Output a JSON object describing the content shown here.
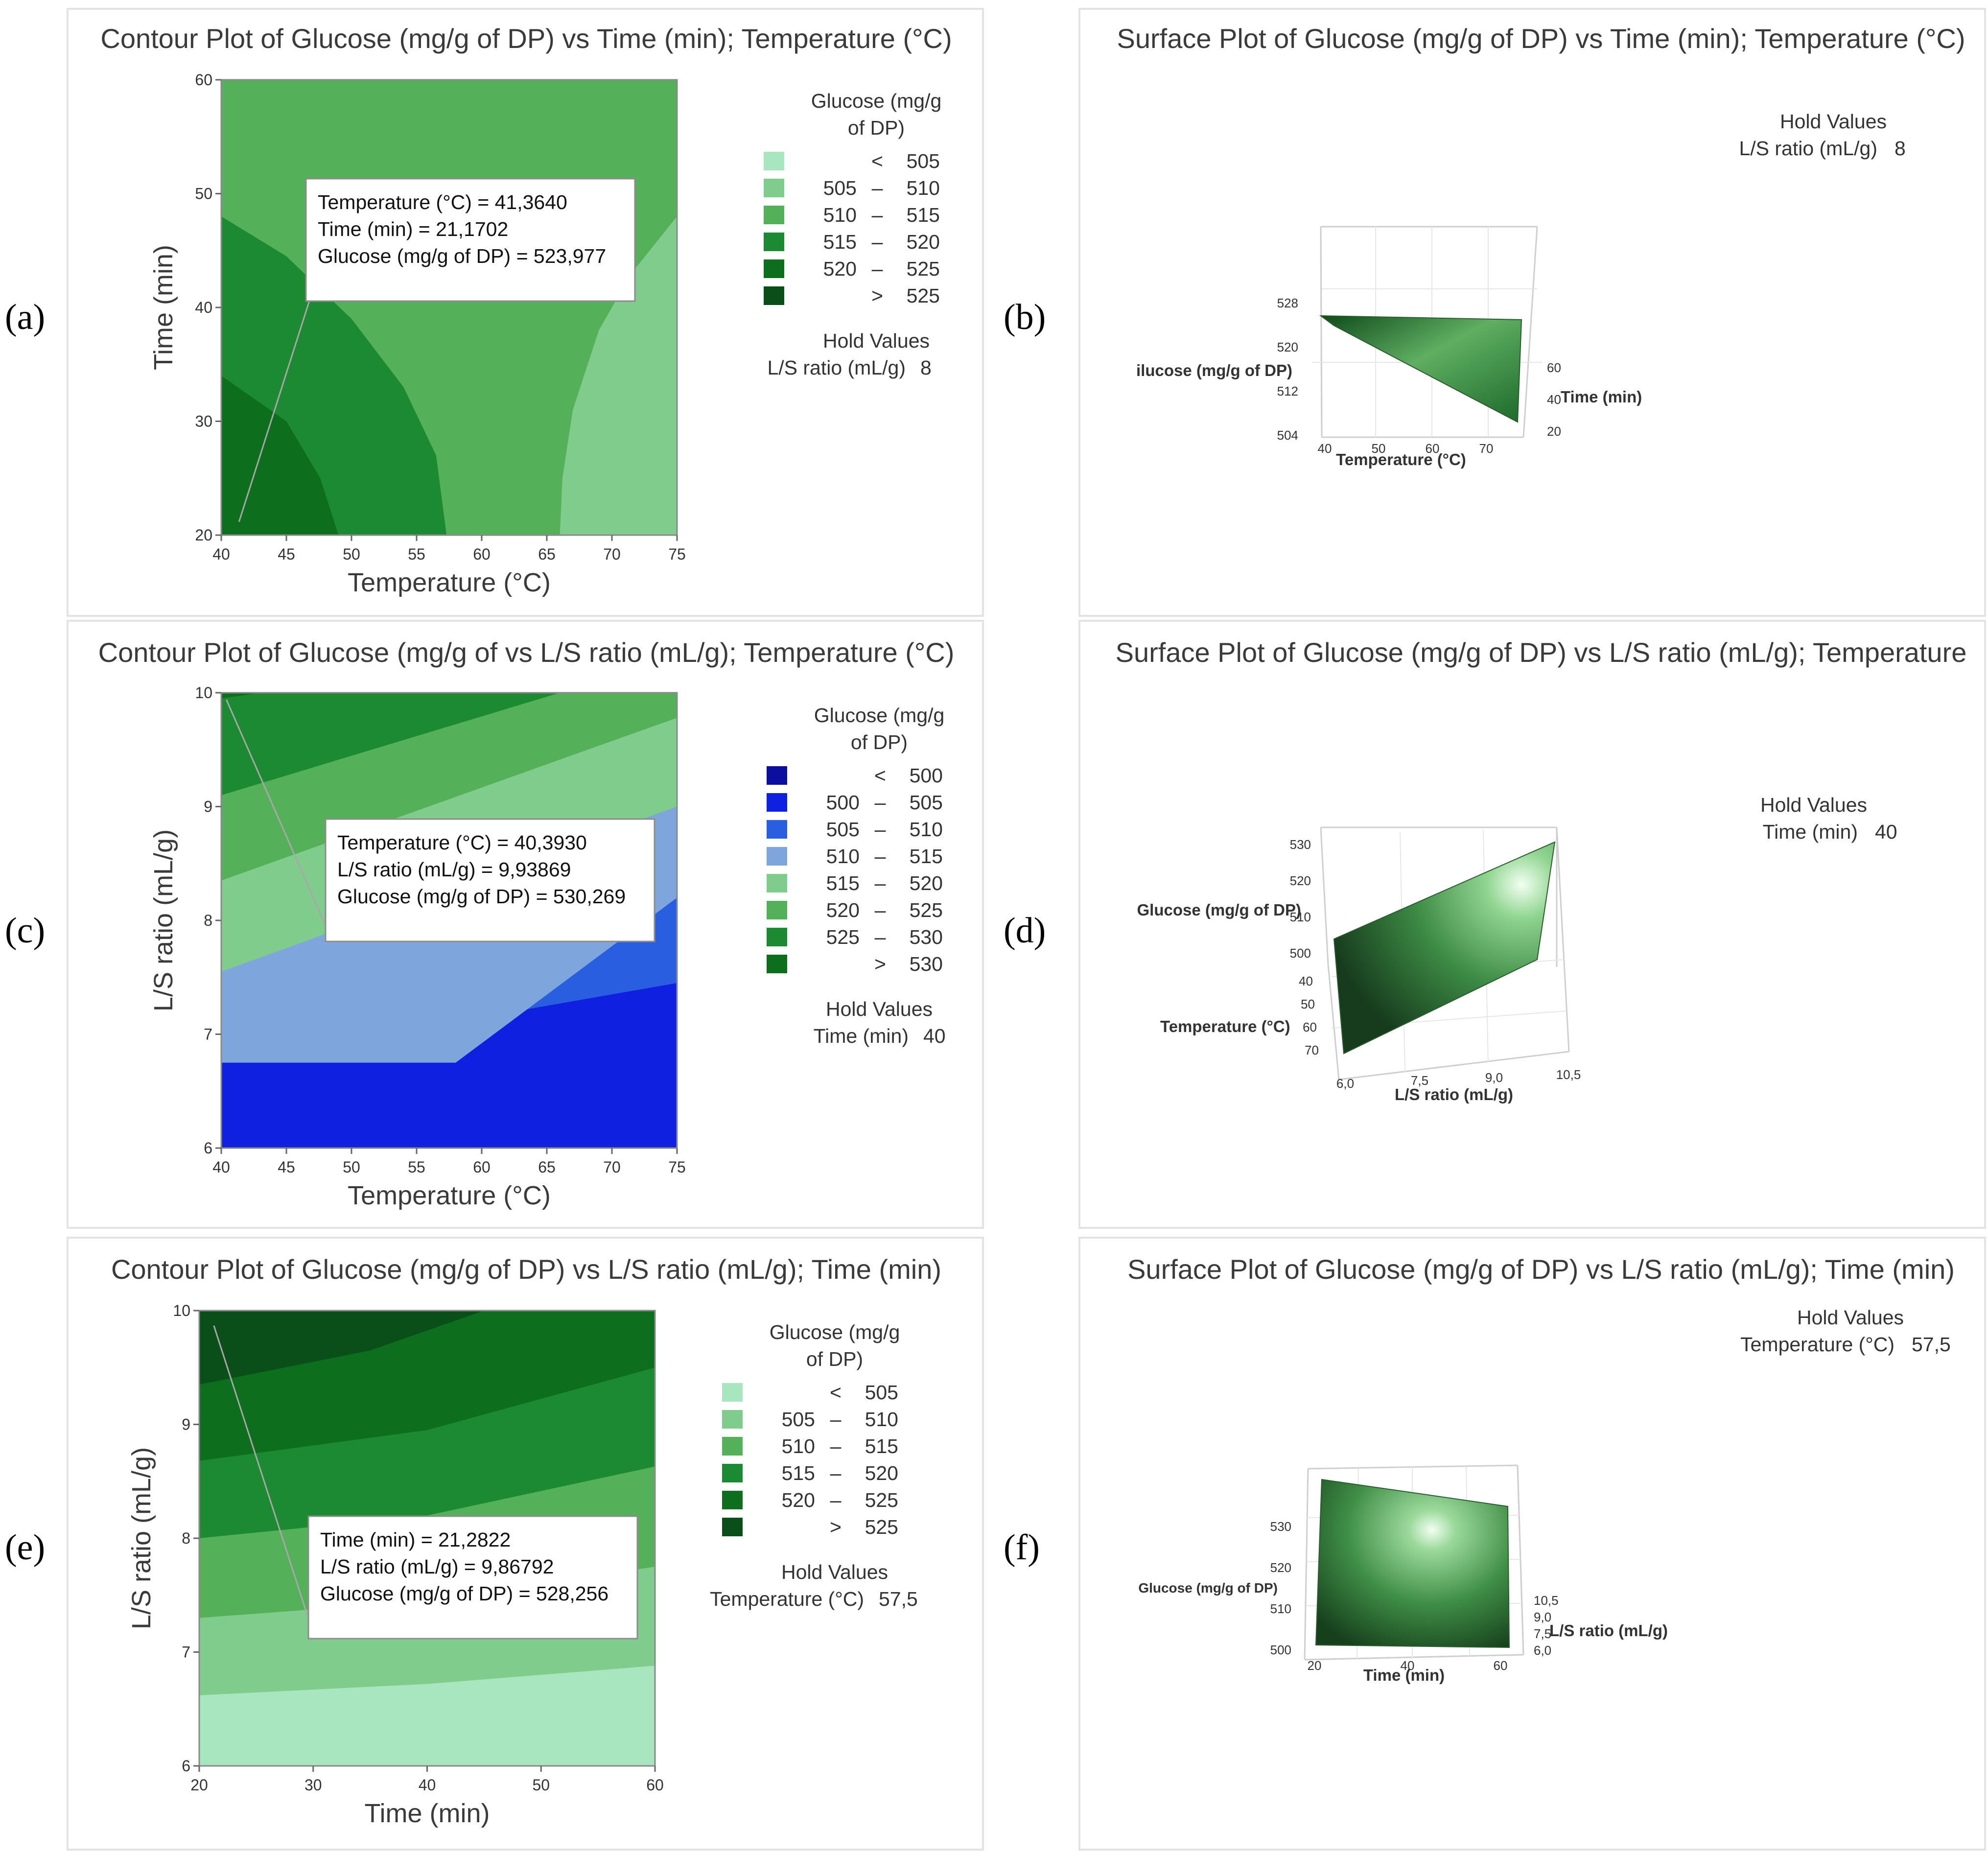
{
  "figure": {
    "panel_labels": [
      "(a)",
      "(b)",
      "(c)",
      "(d)",
      "(e)",
      "(f)"
    ]
  },
  "chart_data": [
    {
      "panel": "(a)",
      "type": "contour",
      "title": "Contour Plot of Glucose (mg/g of DP) vs Time (min); Temperature (°C)",
      "xlabel": "Temperature (°C)",
      "ylabel": "Time (min)",
      "xlim": [
        40,
        75
      ],
      "ylim": [
        20,
        60
      ],
      "xticks": [
        40,
        45,
        50,
        55,
        60,
        65,
        70,
        75
      ],
      "yticks": [
        20,
        30,
        40,
        50,
        60
      ],
      "legend": {
        "title": "Glucose (mg/g of DP)",
        "position": "right",
        "levels": [
          {
            "op": "<",
            "lo": "",
            "hi": "505",
            "color": "#a8e6bf"
          },
          {
            "op": "–",
            "lo": "505",
            "hi": "510",
            "color": "#80cc8c"
          },
          {
            "op": "–",
            "lo": "510",
            "hi": "515",
            "color": "#55b05a"
          },
          {
            "op": "–",
            "lo": "515",
            "hi": "520",
            "color": "#1b8a32"
          },
          {
            "op": "–",
            "lo": "520",
            "hi": "525",
            "color": "#0d6e1e"
          },
          {
            "op": ">",
            "lo": "",
            "hi": "525",
            "color": "#0a4f1a"
          }
        ]
      },
      "regions": [
        {
          "level": 2,
          "polygon": [
            [
              40,
              20
            ],
            [
              75,
              20
            ],
            [
              75,
              60
            ],
            [
              40,
              60
            ]
          ]
        },
        {
          "level": 1,
          "polygon": [
            [
              66,
              20
            ],
            [
              75,
              20
            ],
            [
              75,
              48
            ],
            [
              71.5,
              43
            ],
            [
              69,
              38
            ],
            [
              67,
              31
            ],
            [
              66.2,
              25
            ]
          ]
        },
        {
          "level": 3,
          "polygon": [
            [
              40,
              20
            ],
            [
              57.3,
              20
            ],
            [
              56.5,
              27
            ],
            [
              54,
              33
            ],
            [
              50,
              39
            ],
            [
              45,
              44.5
            ],
            [
              40,
              48
            ]
          ]
        },
        {
          "level": 4,
          "polygon": [
            [
              40,
              20
            ],
            [
              49,
              20
            ],
            [
              47.6,
              25
            ],
            [
              45,
              30
            ],
            [
              40,
              34
            ]
          ]
        }
      ],
      "hold_values": {
        "title": "Hold Values",
        "label": "L/S ratio (mL/g)",
        "value": "8"
      },
      "tooltip": {
        "lines": [
          "Temperature (°C) = 41,3640",
          "Time (min) = 21,1702",
          "Glucose (mg/g of DP) = 523,977"
        ],
        "point": [
          41.364,
          21.1702
        ]
      }
    },
    {
      "panel": "(b)",
      "type": "surface",
      "title": "Surface Plot of Glucose (mg/g of DP) vs Time (min); Temperature (°C)",
      "xlabel": "Temperature (°C)",
      "ylabel": "Time (min)",
      "zlabel": "ilucose (mg/g of DP)",
      "xticks": [
        "40",
        "50",
        "60",
        "70"
      ],
      "yticks": [
        "60",
        "40",
        "20"
      ],
      "zticks": [
        "528",
        "520",
        "512",
        "504"
      ],
      "hold_values": {
        "title": "Hold Values",
        "label": "L/S ratio (mL/g)",
        "value": "8"
      }
    },
    {
      "panel": "(c)",
      "type": "contour",
      "title": "Contour Plot of Glucose (mg/g of vs L/S ratio (mL/g); Temperature (°C)",
      "xlabel": "Temperature (°C)",
      "ylabel": "L/S ratio (mL/g)",
      "xlim": [
        40,
        75
      ],
      "ylim": [
        6,
        10
      ],
      "xticks": [
        40,
        45,
        50,
        55,
        60,
        65,
        70,
        75
      ],
      "yticks": [
        6,
        7,
        8,
        9,
        10
      ],
      "legend": {
        "title": "Glucose (mg/g of DP)",
        "position": "right",
        "levels": [
          {
            "op": "<",
            "lo": "",
            "hi": "500",
            "color": "#0b0fa0"
          },
          {
            "op": "–",
            "lo": "500",
            "hi": "505",
            "color": "#1020e0"
          },
          {
            "op": "–",
            "lo": "505",
            "hi": "510",
            "color": "#2a5ee0"
          },
          {
            "op": "–",
            "lo": "510",
            "hi": "515",
            "color": "#7ea6dc"
          },
          {
            "op": "–",
            "lo": "515",
            "hi": "520",
            "color": "#80cc8c"
          },
          {
            "op": "–",
            "lo": "520",
            "hi": "525",
            "color": "#55b05a"
          },
          {
            "op": "–",
            "lo": "525",
            "hi": "530",
            "color": "#1b8a32"
          },
          {
            "op": ">",
            "lo": "",
            "hi": "530",
            "color": "#0d6e1e"
          }
        ]
      },
      "regions": [
        {
          "level": 0,
          "polygon": [
            [
              40,
              6
            ],
            [
              75,
              6
            ],
            [
              75,
              10
            ],
            [
              40,
              10
            ]
          ]
        },
        {
          "level": 1,
          "polygon": [
            [
              40,
              6
            ],
            [
              75,
              6
            ],
            [
              75,
              10
            ],
            [
              40,
              10
            ]
          ]
        },
        {
          "level": 2,
          "polygon": [
            [
              40,
              6.75
            ],
            [
              75,
              7.45
            ],
            [
              75,
              10
            ],
            [
              40,
              10
            ]
          ]
        },
        {
          "level": 3,
          "polygon": [
            [
              40,
              6.75
            ],
            [
              58,
              6.75
            ],
            [
              75,
              8.2
            ],
            [
              75,
              10
            ],
            [
              40,
              10
            ]
          ]
        },
        {
          "level": 4,
          "polygon": [
            [
              40,
              7.55
            ],
            [
              75,
              9.0
            ],
            [
              75,
              10
            ],
            [
              40,
              10
            ]
          ]
        },
        {
          "level": 5,
          "polygon": [
            [
              40,
              8.35
            ],
            [
              75,
              9.78
            ],
            [
              75,
              10
            ],
            [
              40,
              10
            ]
          ]
        },
        {
          "level": 6,
          "polygon": [
            [
              40,
              9.1
            ],
            [
              66,
              10
            ],
            [
              40,
              10
            ]
          ]
        },
        {
          "level": 7,
          "polygon": [
            [
              40,
              9.95
            ],
            [
              43,
              10
            ],
            [
              40,
              10
            ]
          ]
        }
      ],
      "hold_values": {
        "title": "Hold Values",
        "label": "Time (min)",
        "value": "40"
      },
      "tooltip": {
        "lines": [
          "Temperature (°C) = 40,3930",
          "L/S ratio (mL/g) = 9,93869",
          "Glucose (mg/g of DP) = 530,269"
        ],
        "point": [
          40.393,
          9.93869
        ]
      }
    },
    {
      "panel": "(d)",
      "type": "surface",
      "title": "Surface Plot of Glucose (mg/g of DP) vs L/S ratio (mL/g); Temperature",
      "xlabel": "L/S ratio (mL/g)",
      "ylabel": "Temperature (°C)",
      "zlabel": "Glucose (mg/g of DP)",
      "xticks": [
        "6,0",
        "7,5",
        "9,0",
        "10,5"
      ],
      "yticks": [
        "40",
        "50",
        "60",
        "70"
      ],
      "zticks": [
        "530",
        "520",
        "510",
        "500"
      ],
      "hold_values": {
        "title": "Hold Values",
        "label": "Time (min)",
        "value": "40"
      }
    },
    {
      "panel": "(e)",
      "type": "contour",
      "title": "Contour Plot of Glucose (mg/g of DP) vs L/S ratio (mL/g); Time (min)",
      "xlabel": "Time (min)",
      "ylabel": "L/S ratio (mL/g)",
      "xlim": [
        20,
        60
      ],
      "ylim": [
        6,
        10
      ],
      "xticks": [
        20,
        30,
        40,
        50,
        60
      ],
      "yticks": [
        6,
        7,
        8,
        9,
        10
      ],
      "legend": {
        "title": "Glucose (mg/g of DP)",
        "position": "right",
        "levels": [
          {
            "op": "<",
            "lo": "",
            "hi": "505",
            "color": "#a8e6bf"
          },
          {
            "op": "–",
            "lo": "505",
            "hi": "510",
            "color": "#80cc8c"
          },
          {
            "op": "–",
            "lo": "510",
            "hi": "515",
            "color": "#55b05a"
          },
          {
            "op": "–",
            "lo": "515",
            "hi": "520",
            "color": "#1b8a32"
          },
          {
            "op": "–",
            "lo": "520",
            "hi": "525",
            "color": "#0d6e1e"
          },
          {
            "op": ">",
            "lo": "",
            "hi": "525",
            "color": "#0a4f1a"
          }
        ]
      },
      "regions": [
        {
          "level": 0,
          "polygon": [
            [
              20,
              6
            ],
            [
              60,
              6
            ],
            [
              60,
              10
            ],
            [
              20,
              10
            ]
          ]
        },
        {
          "level": 1,
          "polygon": [
            [
              20,
              6.62
            ],
            [
              40,
              6.72
            ],
            [
              60,
              6.88
            ],
            [
              60,
              10
            ],
            [
              20,
              10
            ]
          ]
        },
        {
          "level": 2,
          "polygon": [
            [
              20,
              7.3
            ],
            [
              40,
              7.45
            ],
            [
              60,
              7.75
            ],
            [
              60,
              10
            ],
            [
              20,
              10
            ]
          ]
        },
        {
          "level": 3,
          "polygon": [
            [
              20,
              8.0
            ],
            [
              40,
              8.2
            ],
            [
              60,
              8.63
            ],
            [
              60,
              10
            ],
            [
              20,
              10
            ]
          ]
        },
        {
          "level": 4,
          "polygon": [
            [
              20,
              8.68
            ],
            [
              40,
              8.95
            ],
            [
              60,
              9.5
            ],
            [
              60,
              10
            ],
            [
              20,
              10
            ]
          ]
        },
        {
          "level": 5,
          "polygon": [
            [
              20,
              9.35
            ],
            [
              35,
              9.65
            ],
            [
              45,
              10
            ],
            [
              20,
              10
            ]
          ]
        }
      ],
      "hold_values": {
        "title": "Hold Values",
        "label": "Temperature (°C)",
        "value": "57,5"
      },
      "tooltip": {
        "lines": [
          "Time (min) = 21,2822",
          "L/S ratio (mL/g) = 9,86792",
          "Glucose (mg/g of DP) = 528,256"
        ],
        "point": [
          21.2822,
          9.86792
        ]
      }
    },
    {
      "panel": "(f)",
      "type": "surface",
      "title": "Surface Plot of Glucose (mg/g of DP) vs L/S ratio (mL/g); Time (min)",
      "xlabel": "Time (min)",
      "ylabel": "L/S ratio (mL/g)",
      "zlabel": "Glucose (mg/g of DP)",
      "xticks": [
        "20",
        "40",
        "60"
      ],
      "yticks": [
        "10,5",
        "9,0",
        "7,5",
        "6,0"
      ],
      "zticks": [
        "530",
        "520",
        "510",
        "500"
      ],
      "hold_values": {
        "title": "Hold Values",
        "label": "Temperature (°C)",
        "value": "57,5"
      }
    }
  ]
}
